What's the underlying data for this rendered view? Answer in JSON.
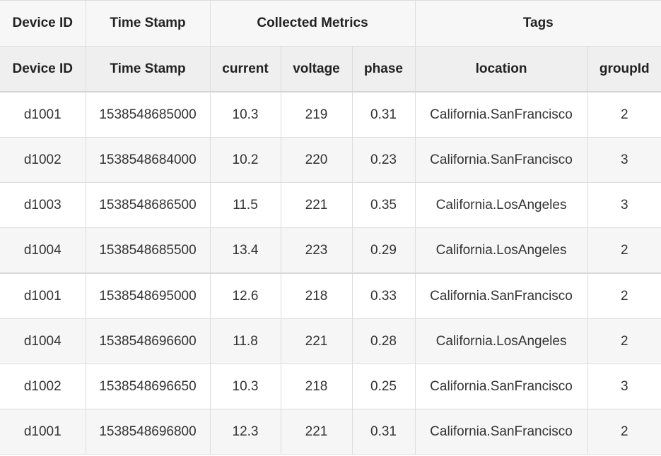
{
  "header": {
    "groups": {
      "device_id": "Device ID",
      "time_stamp": "Time Stamp",
      "collected_metrics": "Collected Metrics",
      "tags": "Tags"
    },
    "columns": {
      "device_id": "Device ID",
      "time_stamp": "Time Stamp",
      "current": "current",
      "voltage": "voltage",
      "phase": "phase",
      "location": "location",
      "group_id": "groupId"
    }
  },
  "rows": [
    {
      "device_id": "d1001",
      "time_stamp": "1538548685000",
      "current": "10.3",
      "voltage": "219",
      "phase": "0.31",
      "location": "California.SanFrancisco",
      "group_id": "2"
    },
    {
      "device_id": "d1002",
      "time_stamp": "1538548684000",
      "current": "10.2",
      "voltage": "220",
      "phase": "0.23",
      "location": "California.SanFrancisco",
      "group_id": "3"
    },
    {
      "device_id": "d1003",
      "time_stamp": "1538548686500",
      "current": "11.5",
      "voltage": "221",
      "phase": "0.35",
      "location": "California.LosAngeles",
      "group_id": "3"
    },
    {
      "device_id": "d1004",
      "time_stamp": "1538548685500",
      "current": "13.4",
      "voltage": "223",
      "phase": "0.29",
      "location": "California.LosAngeles",
      "group_id": "2"
    },
    {
      "device_id": "d1001",
      "time_stamp": "1538548695000",
      "current": "12.6",
      "voltage": "218",
      "phase": "0.33",
      "location": "California.SanFrancisco",
      "group_id": "2"
    },
    {
      "device_id": "d1004",
      "time_stamp": "1538548696600",
      "current": "11.8",
      "voltage": "221",
      "phase": "0.28",
      "location": "California.LosAngeles",
      "group_id": "2"
    },
    {
      "device_id": "d1002",
      "time_stamp": "1538548696650",
      "current": "10.3",
      "voltage": "218",
      "phase": "0.25",
      "location": "California.SanFrancisco",
      "group_id": "3"
    },
    {
      "device_id": "d1001",
      "time_stamp": "1538548696800",
      "current": "12.3",
      "voltage": "221",
      "phase": "0.31",
      "location": "California.SanFrancisco",
      "group_id": "2"
    }
  ]
}
